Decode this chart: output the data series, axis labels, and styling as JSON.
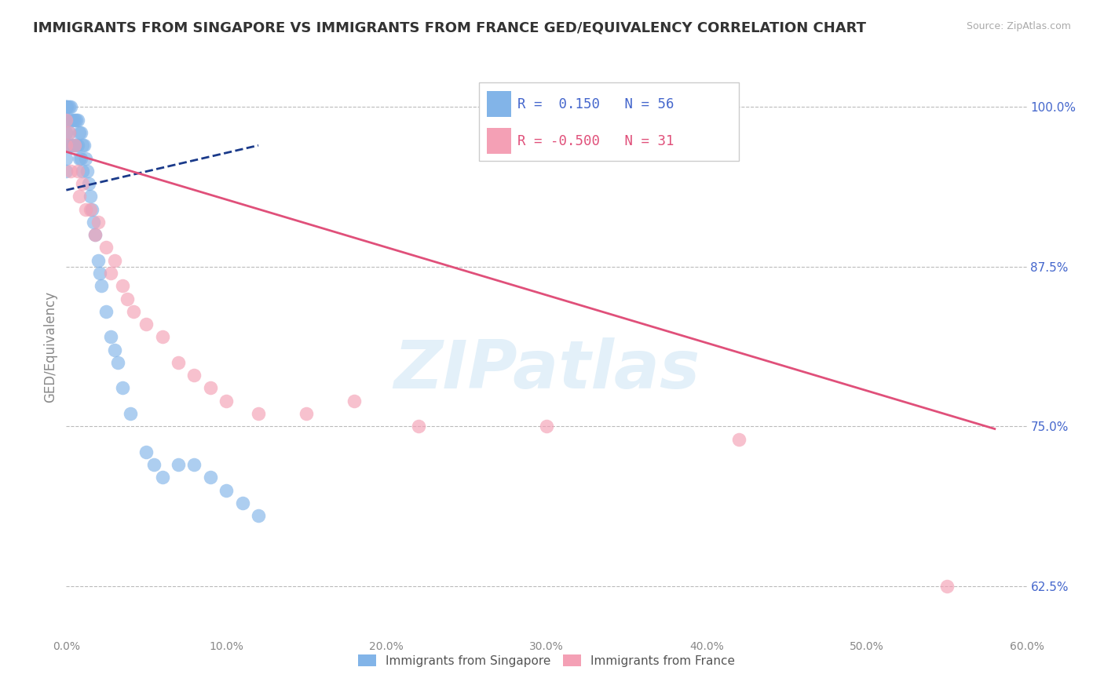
{
  "title": "IMMIGRANTS FROM SINGAPORE VS IMMIGRANTS FROM FRANCE GED/EQUIVALENCY CORRELATION CHART",
  "source": "Source: ZipAtlas.com",
  "ylabel": "GED/Equivalency",
  "xlim": [
    0.0,
    0.6
  ],
  "ylim": [
    0.585,
    1.04
  ],
  "yticks": [
    0.625,
    0.75,
    0.875,
    1.0
  ],
  "ytick_labels": [
    "62.5%",
    "75.0%",
    "87.5%",
    "100.0%"
  ],
  "xticks": [
    0.0,
    0.1,
    0.2,
    0.3,
    0.4,
    0.5,
    0.6
  ],
  "xtick_labels": [
    "0.0%",
    "10.0%",
    "20.0%",
    "30.0%",
    "40.0%",
    "50.0%",
    "60.0%"
  ],
  "singapore_R": 0.15,
  "singapore_N": 56,
  "france_R": -0.5,
  "france_N": 31,
  "singapore_color": "#82b4e8",
  "france_color": "#f4a0b5",
  "singapore_line_color": "#1a3a8a",
  "france_line_color": "#e0507a",
  "legend_labels": [
    "Immigrants from Singapore",
    "Immigrants from France"
  ],
  "watermark": "ZIPatlas",
  "background_color": "#ffffff",
  "grid_color": "#bbbbbb",
  "axis_label_color": "#4466cc",
  "title_color": "#333333",
  "sg_x": [
    0.0,
    0.0,
    0.0,
    0.0,
    0.0,
    0.0,
    0.0,
    0.0,
    0.001,
    0.001,
    0.001,
    0.002,
    0.002,
    0.003,
    0.003,
    0.003,
    0.004,
    0.004,
    0.005,
    0.005,
    0.006,
    0.006,
    0.007,
    0.007,
    0.008,
    0.008,
    0.009,
    0.009,
    0.01,
    0.01,
    0.011,
    0.012,
    0.013,
    0.014,
    0.015,
    0.016,
    0.017,
    0.018,
    0.02,
    0.021,
    0.022,
    0.025,
    0.028,
    0.03,
    0.032,
    0.035,
    0.04,
    0.05,
    0.055,
    0.06,
    0.07,
    0.08,
    0.09,
    0.1,
    0.11,
    0.12
  ],
  "sg_y": [
    1.0,
    1.0,
    1.0,
    0.99,
    0.98,
    0.97,
    0.96,
    0.95,
    1.0,
    0.99,
    0.97,
    1.0,
    0.98,
    1.0,
    0.99,
    0.97,
    0.99,
    0.97,
    0.99,
    0.97,
    0.99,
    0.97,
    0.99,
    0.97,
    0.98,
    0.96,
    0.98,
    0.96,
    0.97,
    0.95,
    0.97,
    0.96,
    0.95,
    0.94,
    0.93,
    0.92,
    0.91,
    0.9,
    0.88,
    0.87,
    0.86,
    0.84,
    0.82,
    0.81,
    0.8,
    0.78,
    0.76,
    0.73,
    0.72,
    0.71,
    0.72,
    0.72,
    0.71,
    0.7,
    0.69,
    0.68
  ],
  "fr_x": [
    0.0,
    0.0,
    0.002,
    0.003,
    0.005,
    0.007,
    0.008,
    0.01,
    0.012,
    0.015,
    0.018,
    0.02,
    0.025,
    0.028,
    0.03,
    0.035,
    0.038,
    0.042,
    0.05,
    0.06,
    0.07,
    0.08,
    0.09,
    0.1,
    0.12,
    0.15,
    0.18,
    0.22,
    0.3,
    0.42,
    0.55
  ],
  "fr_y": [
    0.99,
    0.97,
    0.98,
    0.95,
    0.97,
    0.95,
    0.93,
    0.94,
    0.92,
    0.92,
    0.9,
    0.91,
    0.89,
    0.87,
    0.88,
    0.86,
    0.85,
    0.84,
    0.83,
    0.82,
    0.8,
    0.79,
    0.78,
    0.77,
    0.76,
    0.76,
    0.77,
    0.75,
    0.75,
    0.74,
    0.625
  ],
  "sg_trend_x": [
    0.0,
    0.12
  ],
  "sg_trend_y": [
    0.935,
    0.97
  ],
  "fr_trend_x": [
    0.0,
    0.58
  ],
  "fr_trend_y": [
    0.965,
    0.748
  ]
}
